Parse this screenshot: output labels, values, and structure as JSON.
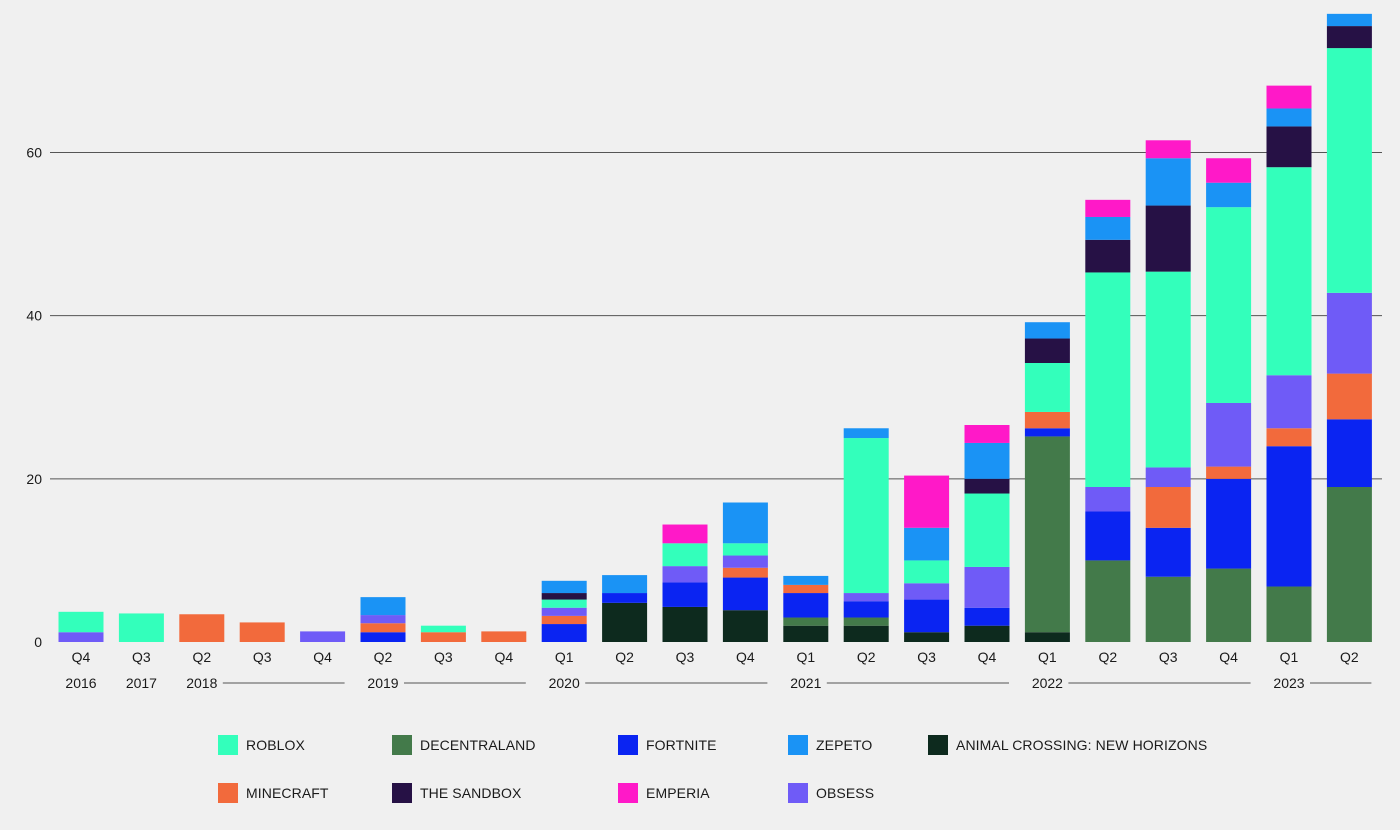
{
  "chart_data": {
    "type": "bar",
    "stacked": true,
    "ylim": [
      0,
      76
    ],
    "yticks": [
      0,
      20,
      40,
      60
    ],
    "grid": true,
    "legend_placement": "bottom",
    "quarter_labels": [
      "Q4",
      "Q3",
      "Q2",
      "Q3",
      "Q4",
      "Q2",
      "Q3",
      "Q4",
      "Q1",
      "Q2",
      "Q3",
      "Q4",
      "Q1",
      "Q2",
      "Q3",
      "Q4",
      "Q1",
      "Q2",
      "Q3",
      "Q4",
      "Q1",
      "Q2"
    ],
    "year_groups": [
      {
        "label": "2016",
        "start": 0,
        "end": 0
      },
      {
        "label": "2017",
        "start": 1,
        "end": 1
      },
      {
        "label": "2018",
        "start": 2,
        "end": 4
      },
      {
        "label": "2019",
        "start": 5,
        "end": 7
      },
      {
        "label": "2020",
        "start": 8,
        "end": 11
      },
      {
        "label": "2021",
        "start": 12,
        "end": 15
      },
      {
        "label": "2022",
        "start": 16,
        "end": 19
      },
      {
        "label": "2023",
        "start": 20,
        "end": 21
      }
    ],
    "series": [
      {
        "name": "ANIMAL CROSSING: NEW HORIZONS",
        "color": "#0d2a1e",
        "values": [
          0,
          0,
          0,
          0,
          0,
          0,
          0,
          0,
          0,
          4.8,
          4.3,
          3.9,
          2.0,
          2.0,
          1.2,
          2.0,
          1.2,
          0,
          0,
          0,
          0,
          0
        ]
      },
      {
        "name": "DECENTRALAND",
        "color": "#437a4a",
        "values": [
          0,
          0,
          0,
          0,
          0,
          0,
          0,
          0,
          0,
          0,
          0,
          0,
          1.0,
          1.0,
          0,
          0,
          24.0,
          10.0,
          8.0,
          9.0,
          6.8,
          19.0
        ]
      },
      {
        "name": "FORTNITE",
        "color": "#0a24f2",
        "values": [
          0,
          0,
          0,
          0,
          0,
          1.2,
          0,
          0,
          2.2,
          1.2,
          3.0,
          4.0,
          3.0,
          2.0,
          4.0,
          2.2,
          1.0,
          6.0,
          6.0,
          11.0,
          17.2,
          8.3
        ]
      },
      {
        "name": "MINECRAFT",
        "color": "#f26a3c",
        "values": [
          0,
          0,
          3.4,
          2.4,
          0,
          1.1,
          1.2,
          1.3,
          1.0,
          0,
          0,
          1.2,
          1.0,
          0,
          0,
          0,
          2.0,
          0,
          5.0,
          1.5,
          2.2,
          5.6
        ]
      },
      {
        "name": "OBSESS",
        "color": "#6f5bf7",
        "values": [
          1.2,
          0,
          0,
          0,
          1.3,
          1.0,
          0,
          0,
          1.0,
          0,
          2.0,
          1.5,
          0,
          1.0,
          2.0,
          5.0,
          0,
          3.0,
          2.4,
          7.8,
          6.5,
          9.9
        ]
      },
      {
        "name": "ROBLOX",
        "color": "#33ffbb",
        "values": [
          2.5,
          3.5,
          0,
          0,
          0,
          0,
          0.8,
          0,
          1.0,
          0,
          2.8,
          1.5,
          0,
          19.0,
          2.8,
          9.0,
          6.0,
          26.3,
          24.0,
          24.0,
          25.5,
          30.0
        ]
      },
      {
        "name": "THE SANDBOX",
        "color": "#261145",
        "values": [
          0,
          0,
          0,
          0,
          0,
          0,
          0,
          0,
          0.8,
          0,
          0,
          0,
          0,
          0,
          0,
          1.8,
          3.0,
          4.0,
          8.1,
          0,
          5.0,
          2.7
        ]
      },
      {
        "name": "ZEPETO",
        "color": "#1a93f5",
        "values": [
          0,
          0,
          0,
          0,
          0,
          2.2,
          0,
          0,
          1.5,
          2.2,
          0,
          5.0,
          1.1,
          1.2,
          4.0,
          4.4,
          2.0,
          2.8,
          5.8,
          3.0,
          2.2,
          1.5
        ]
      },
      {
        "name": "EMPERIA",
        "color": "#ff19c8",
        "values": [
          0,
          0,
          0,
          0,
          0,
          0,
          0,
          0,
          0,
          0,
          2.3,
          0,
          0,
          0,
          6.4,
          2.2,
          0,
          2.1,
          2.2,
          3.0,
          2.8,
          0
        ]
      }
    ]
  },
  "legend": [
    {
      "name": "ROBLOX",
      "color": "#33ffbb"
    },
    {
      "name": "DECENTRALAND",
      "color": "#437a4a"
    },
    {
      "name": "FORTNITE",
      "color": "#0a24f2"
    },
    {
      "name": "ZEPETO",
      "color": "#1a93f5"
    },
    {
      "name": "ANIMAL CROSSING: NEW HORIZONS",
      "color": "#0d2a1e"
    },
    {
      "name": "MINECRAFT",
      "color": "#f26a3c"
    },
    {
      "name": "THE SANDBOX",
      "color": "#261145"
    },
    {
      "name": "EMPERIA",
      "color": "#ff19c8"
    },
    {
      "name": "OBSESS",
      "color": "#6f5bf7"
    }
  ]
}
